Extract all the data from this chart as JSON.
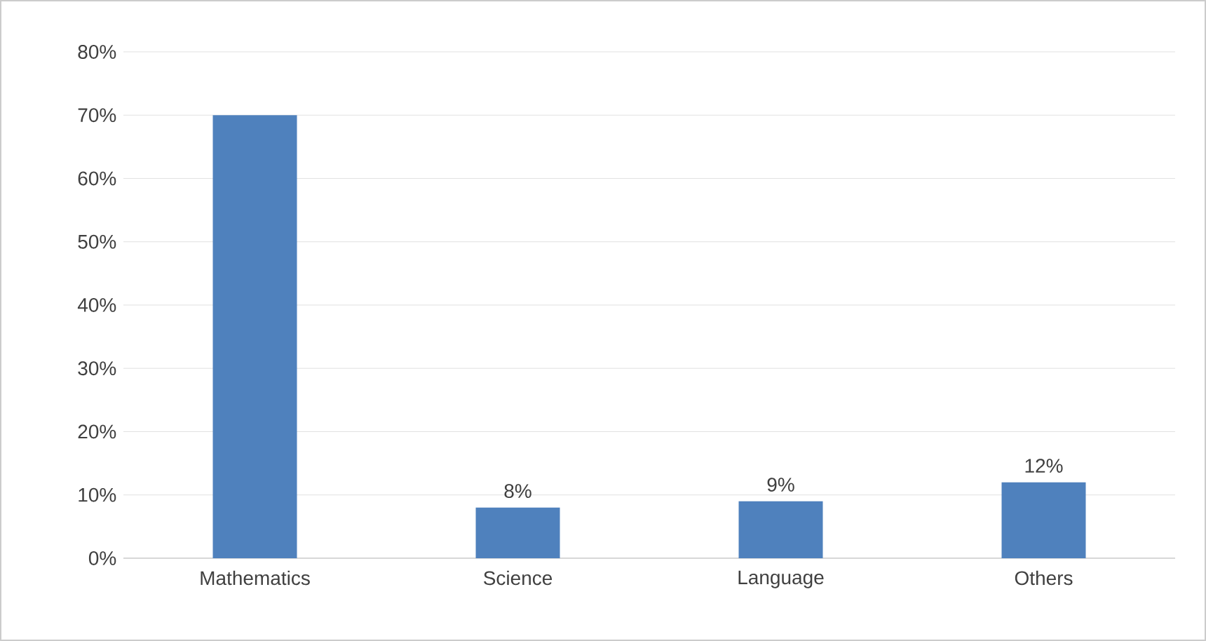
{
  "chart_data": {
    "type": "bar",
    "categories": [
      "Mathematics",
      "Science",
      "Language",
      "Others"
    ],
    "values": [
      70,
      8,
      9,
      12
    ],
    "value_labels": [
      null,
      "8%",
      "9%",
      "12%"
    ],
    "color": "#4f81bd",
    "ylim": [
      0,
      80
    ],
    "yticks": [
      {
        "value": 0,
        "label": "0%"
      },
      {
        "value": 10,
        "label": "10%"
      },
      {
        "value": 20,
        "label": "20%"
      },
      {
        "value": 30,
        "label": "30%"
      },
      {
        "value": 40,
        "label": "40%"
      },
      {
        "value": 50,
        "label": "50%"
      },
      {
        "value": 60,
        "label": "60%"
      },
      {
        "value": 70,
        "label": "70%"
      },
      {
        "value": 80,
        "label": "80%"
      }
    ],
    "grid": "y"
  }
}
